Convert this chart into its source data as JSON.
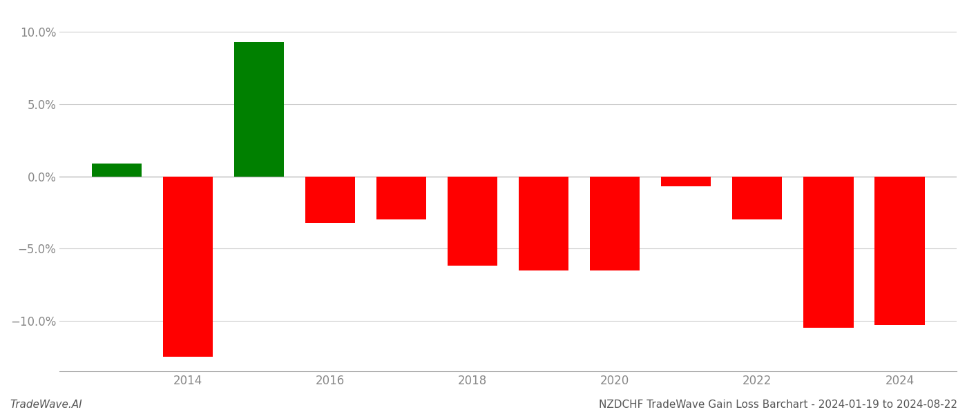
{
  "years": [
    2013,
    2014,
    2015,
    2016,
    2017,
    2018,
    2019,
    2020,
    2021,
    2022,
    2023,
    2024
  ],
  "values": [
    0.009,
    -0.125,
    0.093,
    -0.032,
    -0.03,
    -0.062,
    -0.065,
    -0.065,
    -0.007,
    -0.03,
    -0.105,
    -0.103
  ],
  "colors": [
    "#008000",
    "#ff0000",
    "#008000",
    "#ff0000",
    "#ff0000",
    "#ff0000",
    "#ff0000",
    "#ff0000",
    "#ff0000",
    "#ff0000",
    "#ff0000",
    "#ff0000"
  ],
  "ylim": [
    -0.135,
    0.115
  ],
  "yticks": [
    -0.1,
    -0.05,
    0.0,
    0.05,
    0.1
  ],
  "xtick_positions": [
    2014,
    2016,
    2018,
    2020,
    2022,
    2024
  ],
  "xtick_labels": [
    "2014",
    "2016",
    "2018",
    "2020",
    "2022",
    "2024"
  ],
  "footer_left": "TradeWave.AI",
  "footer_right": "NZDCHF TradeWave Gain Loss Barchart - 2024-01-19 to 2024-08-22",
  "bg_color": "#ffffff",
  "grid_color": "#cccccc",
  "bar_width": 0.7,
  "axis_color": "#aaaaaa",
  "tick_color": "#888888"
}
